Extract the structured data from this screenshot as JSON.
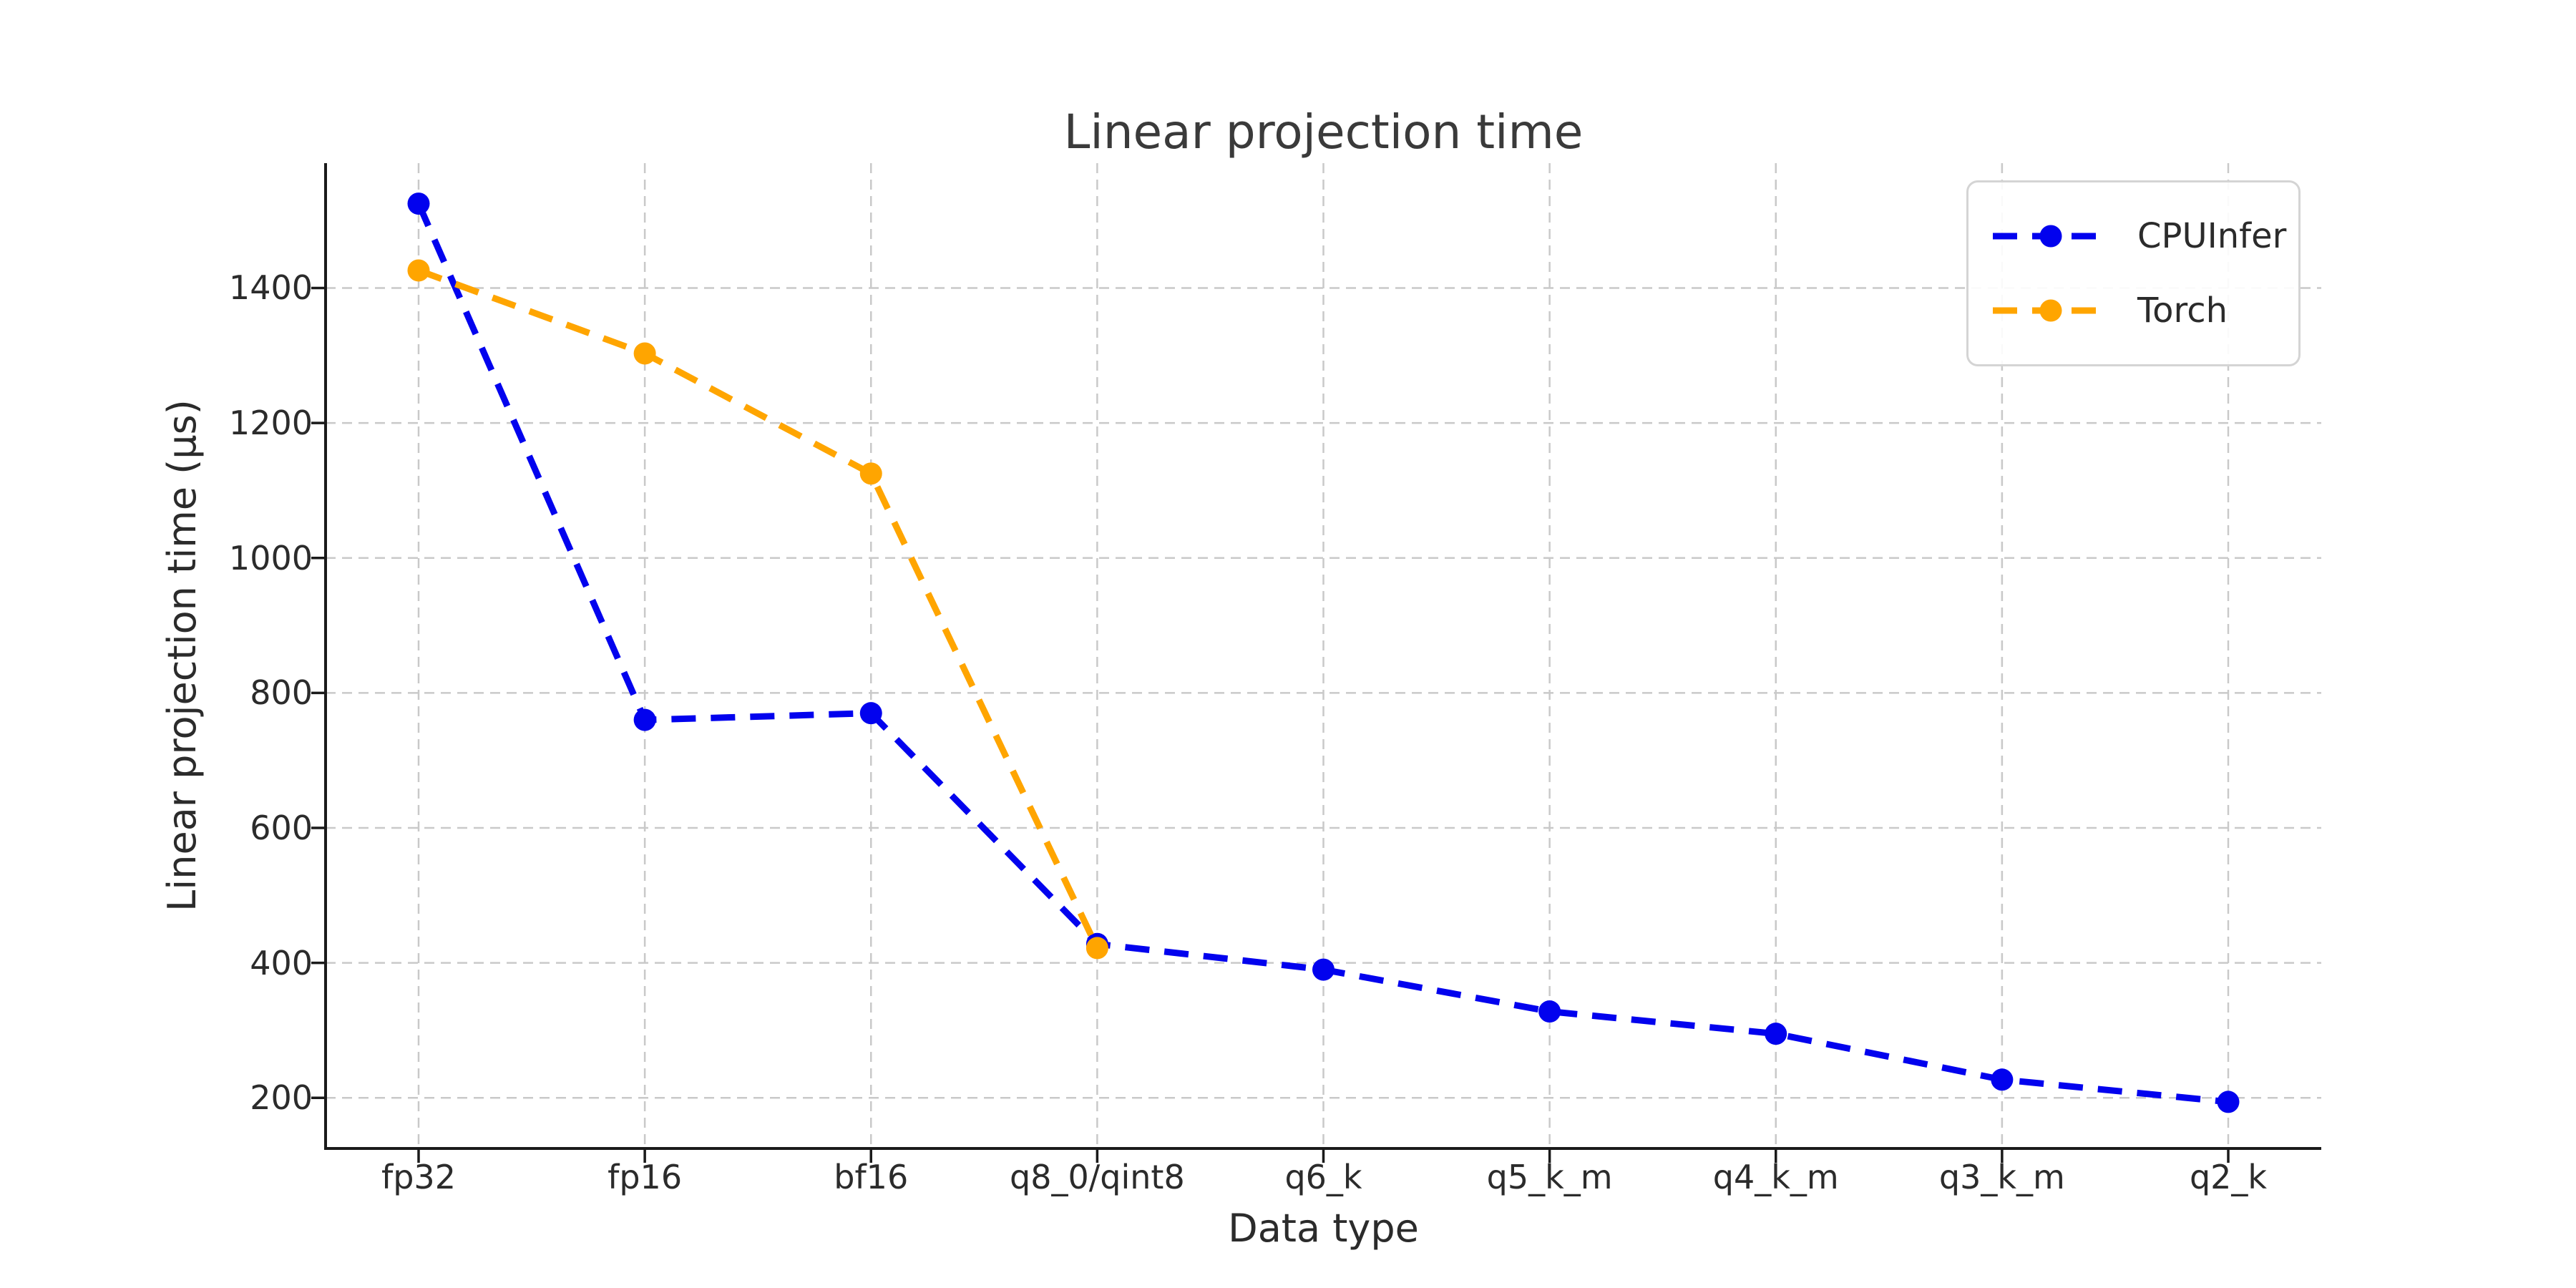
{
  "chart_data": {
    "type": "line",
    "title": "Linear projection time",
    "xlabel": "Data type",
    "ylabel": "Linear projection time (μs)",
    "categories": [
      "fp32",
      "fp16",
      "bf16",
      "q8_0/qint8",
      "q6_k",
      "q5_k_m",
      "q4_k_m",
      "q3_k_m",
      "q2_k"
    ],
    "series": [
      {
        "name": "CPUInfer",
        "color": "#0202ee",
        "line_style": "dashed",
        "marker": "circle",
        "values": [
          1525,
          760,
          770,
          428,
          390,
          328,
          295,
          227,
          194
        ]
      },
      {
        "name": "Torch",
        "color": "#ffa500",
        "line_style": "dashed",
        "marker": "circle",
        "values": [
          1426,
          1303,
          1125,
          422
        ]
      }
    ],
    "yticks": [
      200,
      400,
      600,
      800,
      1000,
      1200,
      1400
    ],
    "ylim": [
      125,
      1585
    ],
    "grid": true,
    "grid_color": "#c9c9c9",
    "axis_color": "#1a1a1a",
    "text_color": "#2b2b2b",
    "legend_position": "upper right"
  }
}
